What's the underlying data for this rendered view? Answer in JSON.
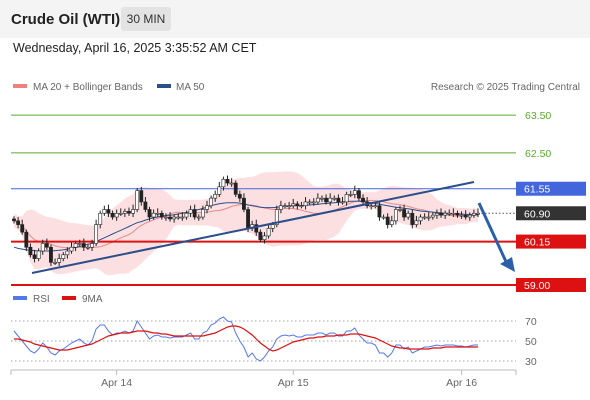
{
  "header": {
    "title": "Crude Oil (WTI)",
    "timeframe": "30 MIN",
    "datetime": "Wednesday, April 16, 2025 3:35:52 AM CET"
  },
  "chart_data": [
    {
      "type": "line",
      "panel": "price",
      "legend": [
        {
          "name": "MA 20 + Bollinger Bands",
          "color": "#f08080"
        },
        {
          "name": "MA 50",
          "color": "#2b4e8c"
        }
      ],
      "credit": "Research © 2025 Trading Central",
      "x_ticks": [
        "Apr 14",
        "Apr 15",
        "Apr 16"
      ],
      "ylim": [
        59.0,
        63.9
      ],
      "levels": [
        {
          "label": "63.50",
          "value": 63.5,
          "kind": "target",
          "color": "#5aaa2a"
        },
        {
          "label": "62.50",
          "value": 62.5,
          "kind": "target",
          "color": "#5aaa2a"
        },
        {
          "label": "61.55",
          "value": 61.55,
          "kind": "resistance",
          "color": "#4466dd"
        },
        {
          "label": "60.90",
          "value": 60.9,
          "kind": "last-price",
          "color": "#333333"
        },
        {
          "label": "60.15",
          "value": 60.15,
          "kind": "support",
          "color": "#dd1111"
        },
        {
          "label": "59.00",
          "value": 59.0,
          "kind": "support",
          "color": "#dd1111"
        }
      ],
      "close": [
        60.7,
        60.6,
        60.4,
        60.0,
        59.8,
        59.7,
        59.9,
        60.1,
        60.0,
        59.6,
        59.6,
        59.7,
        59.8,
        59.9,
        60.0,
        60.1,
        60.1,
        60.0,
        60.0,
        60.1,
        60.6,
        60.9,
        61.0,
        60.9,
        60.8,
        60.9,
        60.9,
        60.95,
        60.9,
        61.0,
        61.5,
        61.2,
        61.0,
        60.8,
        60.9,
        60.9,
        60.8,
        60.8,
        60.75,
        60.8,
        60.8,
        60.8,
        60.9,
        61.0,
        60.8,
        60.8,
        61.0,
        61.1,
        61.3,
        61.4,
        61.6,
        61.8,
        61.7,
        61.7,
        61.4,
        61.3,
        61.0,
        60.5,
        60.6,
        60.4,
        60.2,
        60.3,
        60.5,
        60.6,
        61.0,
        61.1,
        61.1,
        61.1,
        61.15,
        61.1,
        61.1,
        61.2,
        61.2,
        61.2,
        61.3,
        61.3,
        61.2,
        61.3,
        61.3,
        61.2,
        61.2,
        61.4,
        61.4,
        61.5,
        61.3,
        61.2,
        61.1,
        61.1,
        61.1,
        60.8,
        60.8,
        60.6,
        60.7,
        61.0,
        61.0,
        60.8,
        60.9,
        60.6,
        60.7,
        60.8,
        60.8,
        60.8,
        60.85,
        60.9,
        60.85,
        60.9,
        60.9,
        60.9,
        60.85,
        60.85,
        60.8,
        60.85,
        60.9,
        60.9
      ],
      "ma50": [
        60.0,
        59.97,
        59.95,
        59.93,
        59.92,
        59.91,
        59.9,
        59.9,
        59.9,
        59.9,
        59.91,
        59.92,
        59.93,
        59.95,
        59.97,
        60.0,
        60.02,
        60.05,
        60.08,
        60.1,
        60.15,
        60.2,
        60.25,
        60.3,
        60.35,
        60.4,
        60.45,
        60.5,
        60.55,
        60.6,
        60.65,
        60.68,
        60.72,
        60.75,
        60.78,
        60.8,
        60.82,
        60.84,
        60.85,
        60.86,
        60.88,
        60.9,
        60.92,
        60.95,
        60.98,
        61.0,
        61.03,
        61.06,
        61.1,
        61.13,
        61.15,
        61.17,
        61.18,
        61.18,
        61.18,
        61.17,
        61.15,
        61.12,
        61.1,
        61.08,
        61.06,
        61.05,
        61.05,
        61.05,
        61.06,
        61.07,
        61.08,
        61.09,
        61.1,
        61.1,
        61.1,
        61.11,
        61.12,
        61.13,
        61.14,
        61.15,
        61.16,
        61.17,
        61.18,
        61.19,
        61.2,
        61.21,
        61.22,
        61.22,
        61.22,
        61.21,
        61.2,
        61.18,
        61.16,
        61.14,
        61.12,
        61.1,
        61.08,
        61.06,
        61.05,
        61.03,
        61.02,
        61.0,
        60.98,
        60.96,
        60.95,
        60.94,
        60.93,
        60.92,
        60.91,
        60.9,
        60.9,
        60.89,
        60.88,
        60.88,
        60.87,
        60.87,
        60.86,
        60.86
      ]
    },
    {
      "type": "line",
      "panel": "rsi",
      "legend": [
        {
          "name": "RSI",
          "color": "#5577ee"
        },
        {
          "name": "9MA",
          "color": "#dd1111"
        }
      ],
      "y_ticks": [
        "70",
        "50",
        "30"
      ],
      "ylim": [
        25,
        78
      ],
      "rsi": [
        60,
        55,
        50,
        45,
        40,
        38,
        42,
        48,
        44,
        38,
        36,
        40,
        42,
        45,
        48,
        50,
        52,
        48,
        46,
        50,
        62,
        66,
        66,
        60,
        56,
        58,
        58,
        60,
        58,
        60,
        70,
        64,
        58,
        52,
        55,
        56,
        54,
        54,
        53,
        54,
        54,
        54,
        56,
        58,
        52,
        52,
        58,
        60,
        66,
        68,
        72,
        74,
        70,
        69,
        58,
        50,
        44,
        34,
        38,
        32,
        30,
        34,
        40,
        44,
        52,
        55,
        56,
        55,
        56,
        54,
        54,
        56,
        56,
        56,
        58,
        58,
        56,
        58,
        58,
        55,
        55,
        60,
        60,
        63,
        56,
        52,
        48,
        48,
        46,
        38,
        38,
        34,
        38,
        46,
        46,
        42,
        44,
        38,
        40,
        42,
        44,
        44,
        45,
        46,
        45,
        46,
        46,
        46,
        45,
        45,
        44,
        45,
        46,
        46
      ],
      "rsi_ma9": [
        52,
        52,
        51,
        50,
        49,
        47,
        46,
        45,
        44,
        43,
        42,
        41,
        41,
        41,
        42,
        43,
        44,
        45,
        46,
        47,
        49,
        51,
        53,
        55,
        56,
        57,
        58,
        58,
        58,
        59,
        60,
        60,
        60,
        59,
        58,
        58,
        57,
        57,
        56,
        55,
        55,
        55,
        55,
        55,
        55,
        55,
        55,
        56,
        57,
        58,
        60,
        62,
        64,
        65,
        65,
        64,
        62,
        59,
        56,
        52,
        48,
        45,
        42,
        40,
        41,
        43,
        45,
        47,
        49,
        50,
        51,
        52,
        53,
        53,
        54,
        54,
        55,
        55,
        55,
        56,
        56,
        56,
        57,
        57,
        57,
        56,
        55,
        54,
        53,
        51,
        49,
        47,
        45,
        44,
        43,
        43,
        42,
        42,
        42,
        42,
        42,
        42,
        43,
        43,
        43,
        44,
        44,
        44,
        44,
        44,
        44,
        44,
        44,
        44
      ]
    }
  ]
}
